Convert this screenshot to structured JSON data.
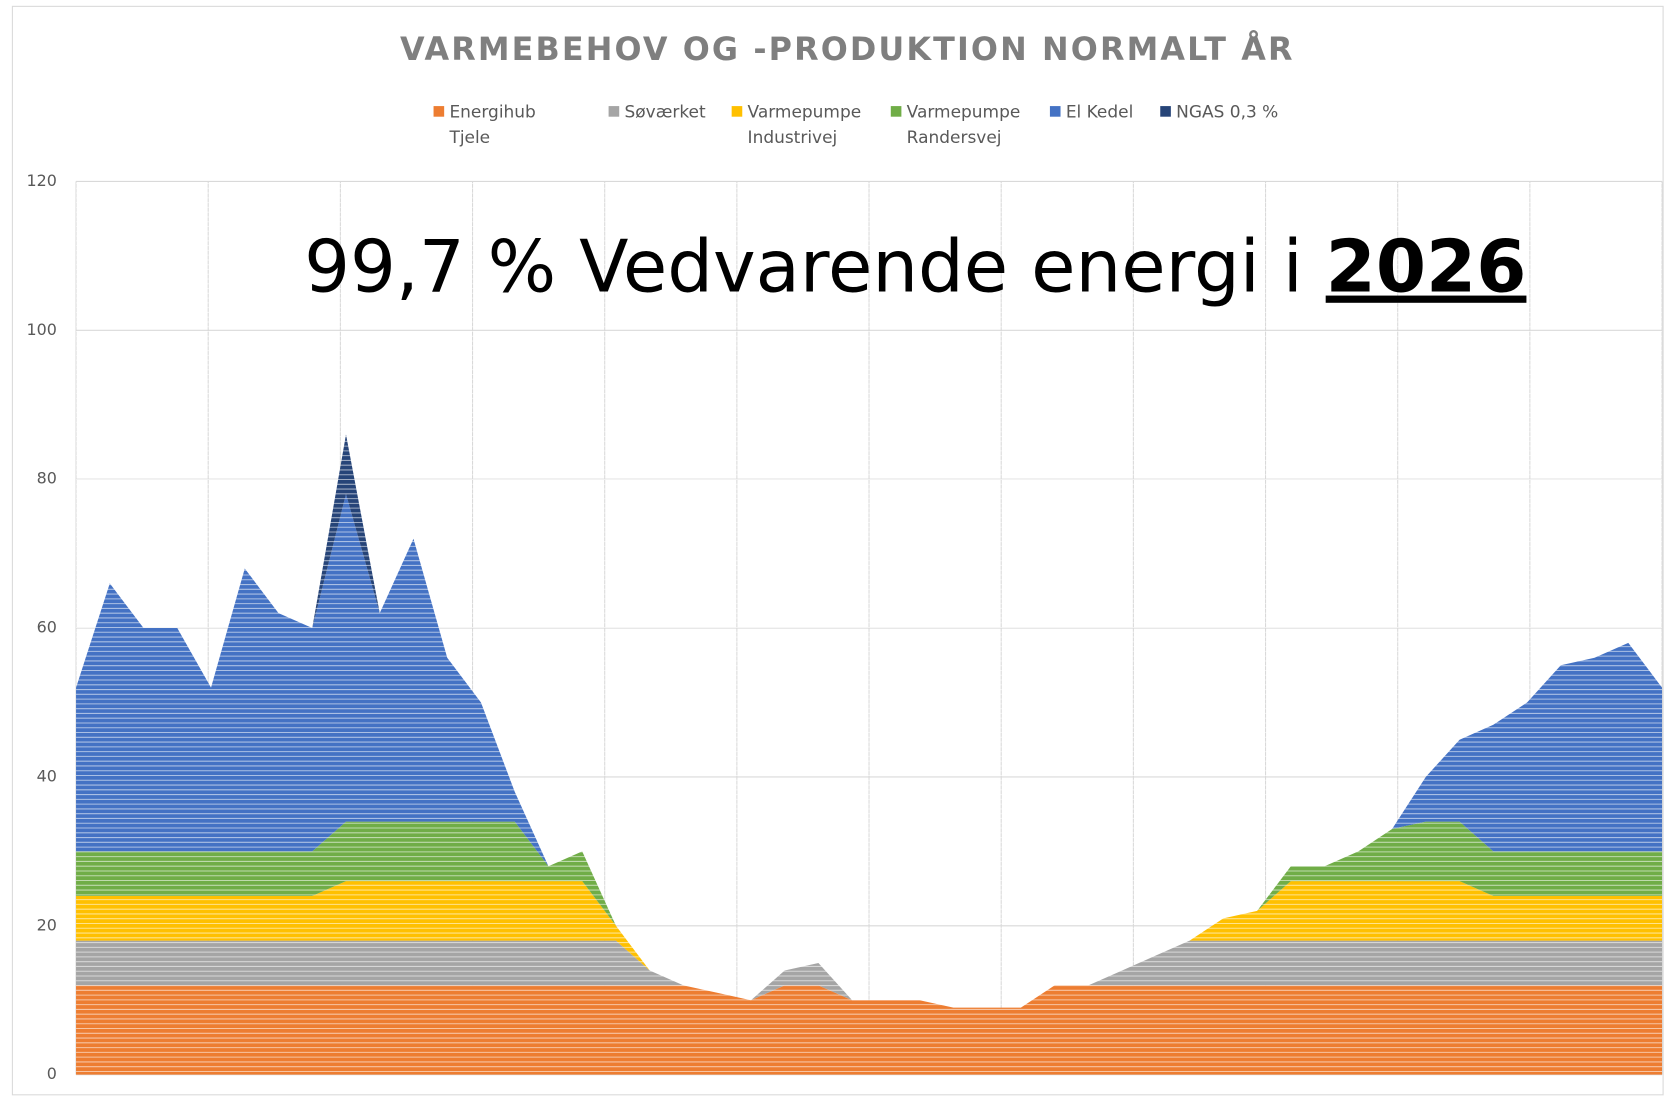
{
  "chart_data": {
    "type": "stacked_area",
    "title": "VARMEBEHOV OG -PRODUKTION NORMALT ÅR",
    "annotation": "99,7 % Vedvarende energi i",
    "annotation_emphasis": "2026",
    "categories": [
      null,
      null,
      null,
      null,
      null,
      null,
      null,
      null,
      null,
      null,
      null,
      null,
      null,
      null,
      null,
      null,
      null,
      null,
      null,
      null,
      null,
      null,
      null,
      null,
      null,
      null,
      null,
      null,
      null,
      null,
      null,
      null,
      null,
      null,
      null,
      null,
      null,
      null,
      null,
      null,
      null,
      null,
      null,
      null,
      null,
      null,
      null,
      null
    ],
    "series": [
      {
        "name": "Energihub Tjele",
        "color": "#ED7D31",
        "values": [
          12,
          12,
          12,
          12,
          12,
          12,
          12,
          12,
          12,
          12,
          12,
          12,
          12,
          12,
          12,
          12,
          12,
          12,
          12,
          11,
          10,
          12,
          12,
          10,
          10,
          10,
          9,
          9,
          9,
          12,
          12,
          12,
          12,
          12,
          12,
          12,
          12,
          12,
          12,
          12,
          12,
          12,
          12,
          12,
          12,
          12,
          12,
          12
        ]
      },
      {
        "name": "Søværket",
        "color": "#A5A5A5",
        "values": [
          6,
          6,
          6,
          6,
          6,
          6,
          6,
          6,
          6,
          6,
          6,
          6,
          6,
          6,
          6,
          6,
          6,
          2,
          0,
          0,
          0,
          2,
          3,
          0,
          0,
          0,
          0,
          0,
          0,
          0,
          0,
          2,
          4,
          6,
          6,
          6,
          6,
          6,
          6,
          6,
          6,
          6,
          6,
          6,
          6,
          6,
          6,
          6
        ]
      },
      {
        "name": "Varmepumpe Industrivej",
        "color": "#FFC000",
        "values": [
          6,
          6,
          6,
          6,
          6,
          6,
          6,
          6,
          8,
          8,
          8,
          8,
          8,
          8,
          8,
          8,
          2,
          0,
          0,
          0,
          0,
          0,
          0,
          0,
          0,
          0,
          0,
          0,
          0,
          0,
          0,
          0,
          0,
          0,
          3,
          4,
          8,
          8,
          8,
          8,
          8,
          8,
          6,
          6,
          6,
          6,
          6,
          6
        ]
      },
      {
        "name": "Varmepumpe Randersvej",
        "color": "#70AD47",
        "values": [
          6,
          6,
          6,
          6,
          6,
          6,
          6,
          6,
          8,
          8,
          8,
          8,
          8,
          8,
          2,
          4,
          0,
          0,
          0,
          0,
          0,
          0,
          0,
          0,
          0,
          0,
          0,
          0,
          0,
          0,
          0,
          0,
          0,
          0,
          0,
          0,
          2,
          2,
          4,
          7,
          8,
          8,
          6,
          6,
          6,
          6,
          6,
          6
        ]
      },
      {
        "name": "El Kedel",
        "color": "#4472C4",
        "values": [
          22,
          36,
          30,
          30,
          22,
          38,
          32,
          30,
          44,
          28,
          38,
          22,
          16,
          4,
          0,
          0,
          0,
          0,
          0,
          0,
          0,
          0,
          0,
          0,
          0,
          0,
          0,
          0,
          0,
          0,
          0,
          0,
          0,
          0,
          0,
          0,
          0,
          0,
          0,
          0,
          6,
          11,
          17,
          20,
          25,
          26,
          28,
          22
        ]
      },
      {
        "name": "NGAS 0,3 %",
        "color": "#264478",
        "values": [
          0,
          0,
          0,
          0,
          0,
          0,
          0,
          0,
          8,
          0,
          0,
          0,
          0,
          0,
          0,
          0,
          0,
          0,
          0,
          0,
          0,
          0,
          0,
          0,
          0,
          0,
          0,
          0,
          0,
          0,
          0,
          0,
          0,
          0,
          0,
          0,
          0,
          0,
          0,
          0,
          0,
          0,
          0,
          0,
          0,
          0,
          0,
          0
        ]
      }
    ],
    "ylim": [
      0,
      120
    ],
    "yticks": [
      0,
      20,
      40,
      60,
      80,
      100,
      120
    ],
    "grid": true,
    "legend": "top"
  }
}
